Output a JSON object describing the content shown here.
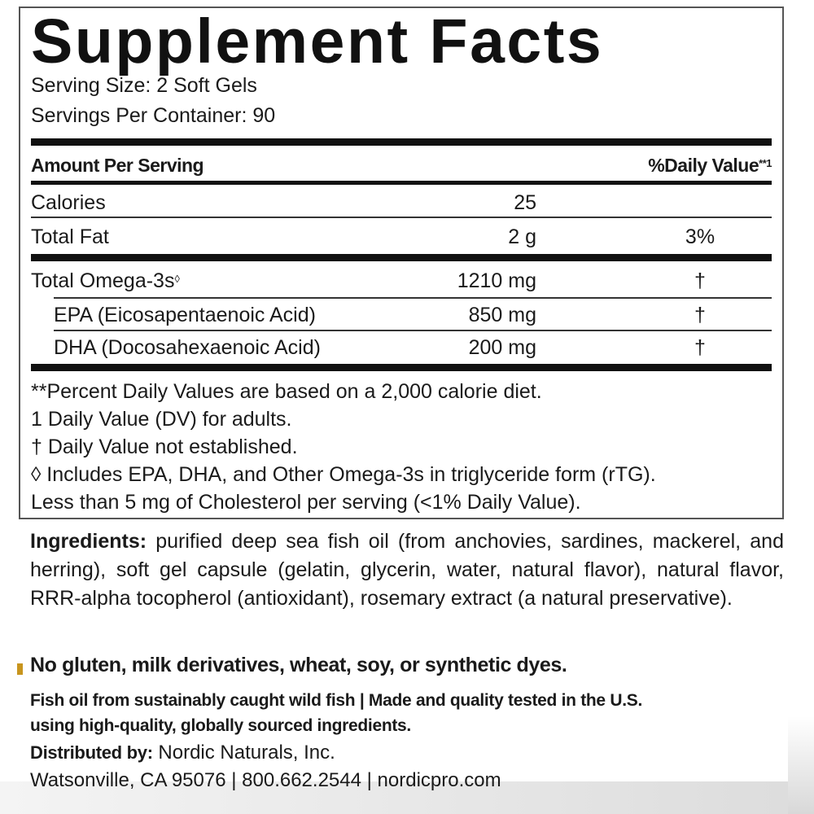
{
  "title": "Supplement Facts",
  "serving_size": "Serving Size: 2 Soft Gels",
  "servings_per_container": "Servings Per Container: 90",
  "header": {
    "amount": "Amount Per Serving",
    "dv": "%Daily Value",
    "dv_sup": "**1"
  },
  "rows": [
    {
      "label": "Calories",
      "amount": "25",
      "dv": ""
    },
    {
      "label": "Total Fat",
      "amount": "2 g",
      "dv": "3%"
    },
    {
      "label": "Total Omega-3s",
      "label_sup": "◊",
      "amount": "1210 mg",
      "dv": "†"
    },
    {
      "label": "EPA (Eicosapentaenoic Acid)",
      "amount": "850 mg",
      "dv": "†"
    },
    {
      "label": "DHA (Docosahexaenoic Acid)",
      "amount": "200 mg",
      "dv": "†"
    }
  ],
  "footnotes": [
    "**Percent Daily Values are based on a 2,000 calorie diet.",
    "1 Daily Value (DV) for adults.",
    "† Daily Value not established.",
    "◊ Includes EPA, DHA, and Other Omega-3s in triglyceride form (rTG).",
    "Less than 5 mg of Cholesterol per serving (<1% Daily Value)."
  ],
  "ingredients": {
    "label": "Ingredients:",
    "text": "purified deep sea fish oil (from anchovies, sardines, mackerel, and herring), soft gel capsule (gelatin, glycerin, water, natural flavor), natural flavor, RRR-alpha tocopherol (antioxidant), rosemary extract (a natural preservative)."
  },
  "free_from": "No gluten, milk derivatives, wheat, soy, or synthetic dyes.",
  "sourcing": [
    "Fish oil from sustainably caught wild fish | Made and quality tested in the U.S.",
    "using high-quality, globally sourced ingredients."
  ],
  "distributor": {
    "label": "Distributed by:",
    "name": "Nordic Naturals, Inc.",
    "address": "Watsonville, CA 95076 | 800.662.2544 | nordicpro.com"
  },
  "colors": {
    "accent_marker": "#c8951e",
    "text": "#1a1a1a"
  }
}
